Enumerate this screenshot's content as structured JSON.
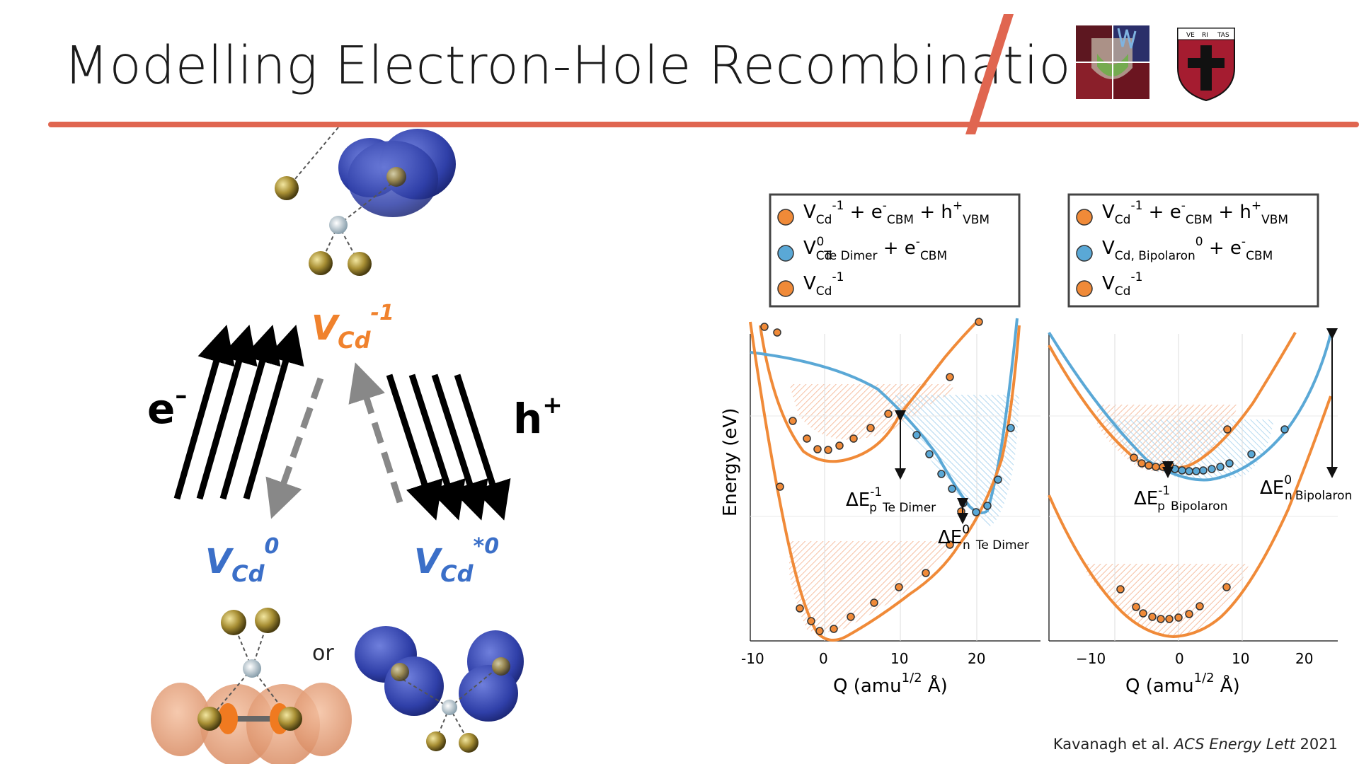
{
  "title": "Modelling Electron-Hole Recombination",
  "citation": {
    "authors": "Kavanagh et al.",
    "journal": "ACS Energy Lett",
    "year": "2021"
  },
  "logos": {
    "icon": "institution-logo-icon",
    "shield_icon": "shield-logo-icon",
    "shield_text": [
      "VE",
      "RI",
      "TAS"
    ]
  },
  "colors": {
    "accent": "#e06650",
    "orange": "#f08a38",
    "blue": "#5aa8d6",
    "label_orange": "#f0822d",
    "label_blue": "#3b6fc8"
  },
  "scheme": {
    "top_state": {
      "main": "V",
      "sub": "Cd",
      "sup": "-1"
    },
    "electron": {
      "main": "e",
      "sup": "–"
    },
    "hole": {
      "main": "h",
      "sup": "+"
    },
    "left_state": {
      "main": "V",
      "sub": "Cd",
      "sup": "0"
    },
    "right_state": {
      "main": "V",
      "sub": "Cd",
      "sup": "*0"
    },
    "or_text": "or"
  },
  "panels": [
    {
      "legend": [
        {
          "color": "orange",
          "parts": [
            [
              "V",
              ""
            ],
            [
              "Cd",
              "sub"
            ],
            [
              "-1",
              "sup"
            ],
            [
              " + e",
              ""
            ],
            [
              "-",
              "sup"
            ],
            [
              "CBM",
              "sub"
            ],
            [
              " + h",
              ""
            ],
            [
              "+",
              "sup"
            ],
            [
              "VBM",
              "sub"
            ]
          ]
        },
        {
          "color": "blue",
          "parts": [
            [
              "V",
              ""
            ],
            [
              "Cd",
              "sub"
            ],
            [
              "0",
              "sup"
            ],
            [
              "Te Dimer",
              "sub"
            ],
            [
              " + e",
              ""
            ],
            [
              "-",
              "sup"
            ],
            [
              "CBM",
              "sub"
            ]
          ]
        },
        {
          "color": "orange",
          "parts": [
            [
              "V",
              ""
            ],
            [
              "Cd",
              "sub"
            ],
            [
              "-1",
              "sup"
            ]
          ]
        }
      ],
      "ylabel": "Energy (eV)",
      "xlabel": {
        "main": "Q (amu",
        "sup": "1/2",
        "tail": " Å)"
      },
      "xticks": [
        "-10",
        "0",
        "10",
        "20"
      ],
      "annotations": [
        {
          "main": "ΔE",
          "sup": "-1",
          "sub": "p",
          "sub2": "Te Dimer"
        },
        {
          "main": "ΔE",
          "sup": "0",
          "sub": "n",
          "sub2": "Te Dimer"
        }
      ]
    },
    {
      "legend": [
        {
          "color": "orange",
          "parts": [
            [
              "V",
              ""
            ],
            [
              "Cd",
              "sub"
            ],
            [
              "-1",
              "sup"
            ],
            [
              " + e",
              ""
            ],
            [
              "-",
              "sup"
            ],
            [
              "CBM",
              "sub"
            ],
            [
              " + h",
              ""
            ],
            [
              "+",
              "sup"
            ],
            [
              "VBM",
              "sub"
            ]
          ]
        },
        {
          "color": "blue",
          "parts": [
            [
              "V",
              ""
            ],
            [
              "Cd, Bipolaron",
              "sub"
            ],
            [
              "0",
              "sup"
            ],
            [
              " + e",
              ""
            ],
            [
              "-",
              "sup"
            ],
            [
              "CBM",
              "sub"
            ]
          ]
        },
        {
          "color": "orange",
          "parts": [
            [
              "V",
              ""
            ],
            [
              "Cd",
              "sub"
            ],
            [
              "-1",
              "sup"
            ]
          ]
        }
      ],
      "xlabel": {
        "main": "Q (amu",
        "sup": "1/2",
        "tail": " Å)"
      },
      "xticks": [
        "−10",
        "0",
        "10",
        "20"
      ],
      "annotations": [
        {
          "main": "ΔE",
          "sup": "-1",
          "sub": "p",
          "sub2": "Bipolaron"
        },
        {
          "main": "ΔE",
          "sup": "0",
          "sub": "n",
          "sub2": "Bipolaron"
        }
      ]
    }
  ]
}
